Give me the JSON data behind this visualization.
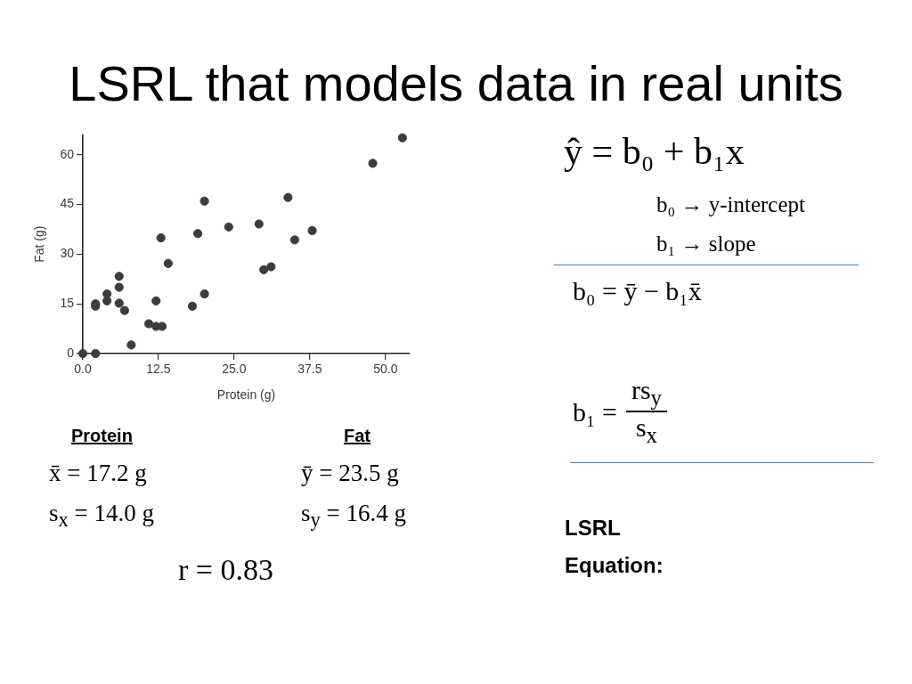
{
  "chart_data": {
    "type": "scatter",
    "title": "LSRL that models data in real units",
    "xlabel": "Protein (g)",
    "ylabel": "Fat (g)",
    "x": [
      0,
      2.1,
      2.1,
      2.1,
      4.0,
      4.0,
      6.0,
      6.0,
      6.0,
      6.9,
      8.0,
      10.9,
      12.1,
      12.1,
      13.1,
      12.9,
      14.1,
      18.1,
      19.0,
      20.1,
      20.1,
      24.1,
      29.1,
      29.9,
      31.1,
      33.9,
      35.0,
      37.9,
      47.9,
      52.8
    ],
    "values": [
      0,
      0,
      15.0,
      14.3,
      18.0,
      15.9,
      23.3,
      20.0,
      15.2,
      13.0,
      2.6,
      9.0,
      15.9,
      8.2,
      8.2,
      34.9,
      27.2,
      14.3,
      36.2,
      46.0,
      18.0,
      38.2,
      39.1,
      25.3,
      26.2,
      47.1,
      34.3,
      37.1,
      57.4,
      65.1
    ],
    "color": "#3c3c3c",
    "marker": "circle",
    "xlim": [
      0,
      54
    ],
    "xticks": [
      {
        "value": 0,
        "label": "0.0"
      },
      12.5,
      {
        "value": 25,
        "label": "25.0"
      },
      37.5,
      {
        "value": 50,
        "label": "50.0"
      }
    ],
    "ylim": [
      0,
      66
    ],
    "yticks": [
      0,
      15,
      30,
      45,
      60
    ],
    "annotations": [
      "ŷ = b₀ + b₁x",
      "b₀ → y-intercept",
      "b₁ → slope",
      "b₀ = ȳ − b₁x̄",
      "b₁ =",
      "rs$_{y}$",
      "s$_{x}$",
      "Protein",
      "Fat",
      "x̄ = 17.2 g",
      "ȳ = 23.5 g",
      "s$_{x}$ = 14.0 g",
      "s$_{y}$ = 16.4 g",
      "r = 0.83",
      "LSRL Equation:"
    ]
  }
}
